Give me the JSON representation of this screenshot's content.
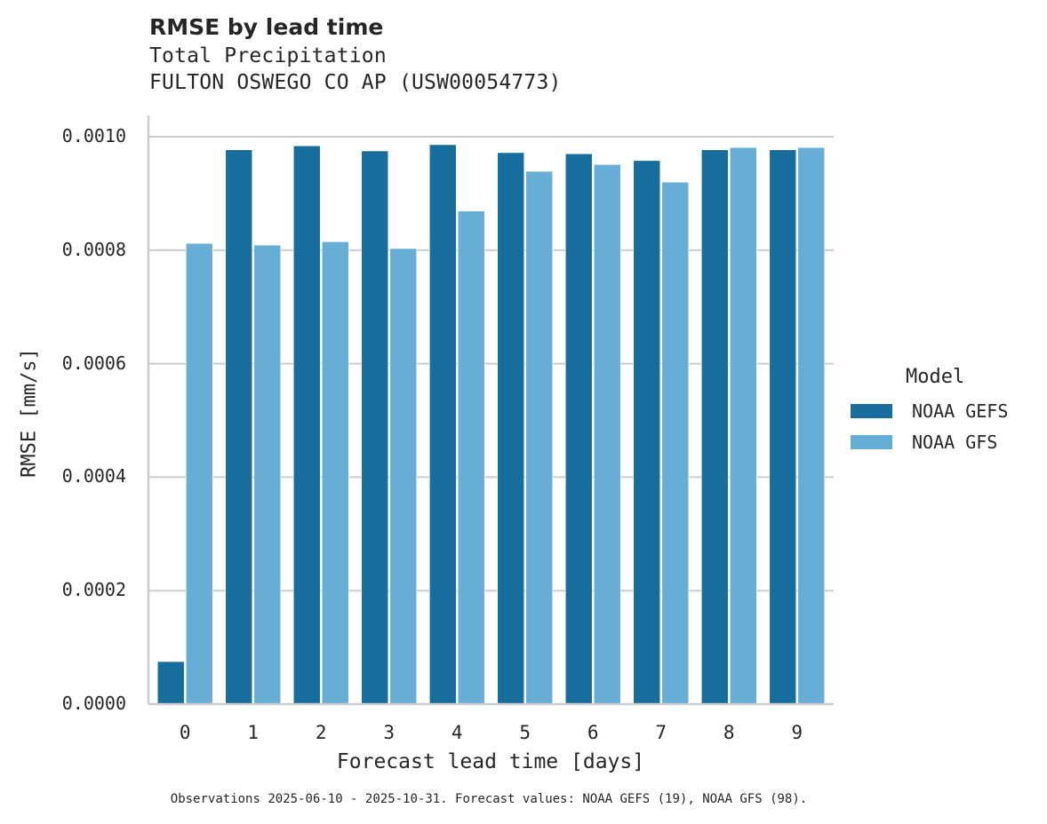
{
  "header": {
    "title": "RMSE by lead time",
    "subtitle_variable": "Total Precipitation",
    "subtitle_station": "FULTON OSWEGO CO AP (USW00054773)"
  },
  "axes": {
    "xlabel": "Forecast lead time [days]",
    "ylabel": "RMSE [mm/s]",
    "yticks": [
      "0.0000",
      "0.0002",
      "0.0004",
      "0.0006",
      "0.0008",
      "0.0010"
    ],
    "xticks": [
      "0",
      "1",
      "2",
      "3",
      "4",
      "5",
      "6",
      "7",
      "8",
      "9"
    ]
  },
  "legend": {
    "title": "Model",
    "items": [
      {
        "label": "NOAA GEFS",
        "color": "#176d9c"
      },
      {
        "label": "NOAA GFS",
        "color": "#67aed6"
      }
    ]
  },
  "footnote": "Observations 2025-06-10 - 2025-10-31. Forecast values: NOAA GEFS (19), NOAA GFS (98).",
  "chart_data": {
    "type": "bar",
    "title": "RMSE by lead time",
    "subtitle": "Total Precipitation — FULTON OSWEGO CO AP (USW00054773)",
    "xlabel": "Forecast lead time [days]",
    "ylabel": "RMSE [mm/s]",
    "categories": [
      "0",
      "1",
      "2",
      "3",
      "4",
      "5",
      "6",
      "7",
      "8",
      "9"
    ],
    "series": [
      {
        "name": "NOAA GEFS",
        "color": "#176d9c",
        "values": [
          7.5e-05,
          0.000977,
          0.000984,
          0.000975,
          0.000986,
          0.000972,
          0.00097,
          0.000958,
          0.000977,
          0.000977
        ]
      },
      {
        "name": "NOAA GFS",
        "color": "#67aed6",
        "values": [
          0.000812,
          0.000809,
          0.000815,
          0.000803,
          0.000869,
          0.000939,
          0.000951,
          0.00092,
          0.000981,
          0.000981
        ]
      }
    ],
    "ylim": [
      0,
      0.00104
    ],
    "yticks": [
      0,
      0.0002,
      0.0004,
      0.0006,
      0.0008,
      0.001
    ],
    "grid": "y",
    "legend_position": "right",
    "legend_title": "Model"
  }
}
